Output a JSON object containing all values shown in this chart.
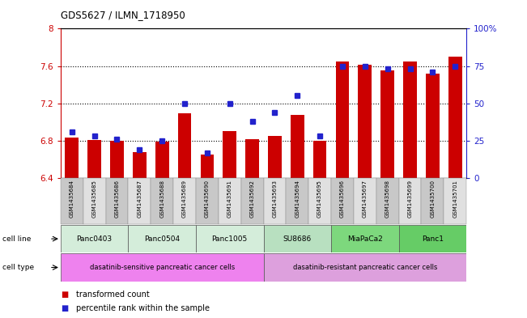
{
  "title": "GDS5627 / ILMN_1718950",
  "samples": [
    "GSM1435684",
    "GSM1435685",
    "GSM1435686",
    "GSM1435687",
    "GSM1435688",
    "GSM1435689",
    "GSM1435690",
    "GSM1435691",
    "GSM1435692",
    "GSM1435693",
    "GSM1435694",
    "GSM1435695",
    "GSM1435696",
    "GSM1435697",
    "GSM1435698",
    "GSM1435699",
    "GSM1435700",
    "GSM1435701"
  ],
  "bar_values": [
    6.83,
    6.81,
    6.8,
    6.68,
    6.79,
    7.09,
    6.65,
    6.9,
    6.82,
    6.85,
    7.08,
    6.8,
    7.65,
    7.61,
    7.55,
    7.65,
    7.52,
    7.7
  ],
  "dot_values": [
    31,
    28,
    26,
    19,
    25,
    50,
    17,
    50,
    38,
    44,
    55,
    28,
    75,
    75,
    73,
    73,
    71,
    75
  ],
  "ylim_left": [
    6.4,
    8.0
  ],
  "ylim_right": [
    0,
    100
  ],
  "yticks_left": [
    6.4,
    6.8,
    7.2,
    7.6,
    8.0
  ],
  "yticks_right": [
    0,
    25,
    50,
    75,
    100
  ],
  "ytick_labels_right": [
    "0",
    "25",
    "50",
    "75",
    "100%"
  ],
  "bar_color": "#cc0000",
  "dot_color": "#2222cc",
  "cell_lines": [
    {
      "name": "Panc0403",
      "start": 0,
      "end": 2
    },
    {
      "name": "Panc0504",
      "start": 3,
      "end": 5
    },
    {
      "name": "Panc1005",
      "start": 6,
      "end": 8
    },
    {
      "name": "SU8686",
      "start": 9,
      "end": 11
    },
    {
      "name": "MiaPaCa2",
      "start": 12,
      "end": 14
    },
    {
      "name": "Panc1",
      "start": 15,
      "end": 17
    }
  ],
  "cell_line_colors": [
    "#d4edda",
    "#d4edda",
    "#d4edda",
    "#b8e0c0",
    "#7dd87d",
    "#66cc66"
  ],
  "cell_types": [
    {
      "name": "dasatinib-sensitive pancreatic cancer cells",
      "start": 0,
      "end": 8
    },
    {
      "name": "dasatinib-resistant pancreatic cancer cells",
      "start": 9,
      "end": 17
    }
  ],
  "cell_type_colors": [
    "#ee82ee",
    "#dda0dd"
  ],
  "legend_labels": [
    "transformed count",
    "percentile rank within the sample"
  ],
  "bar_width": 0.6
}
